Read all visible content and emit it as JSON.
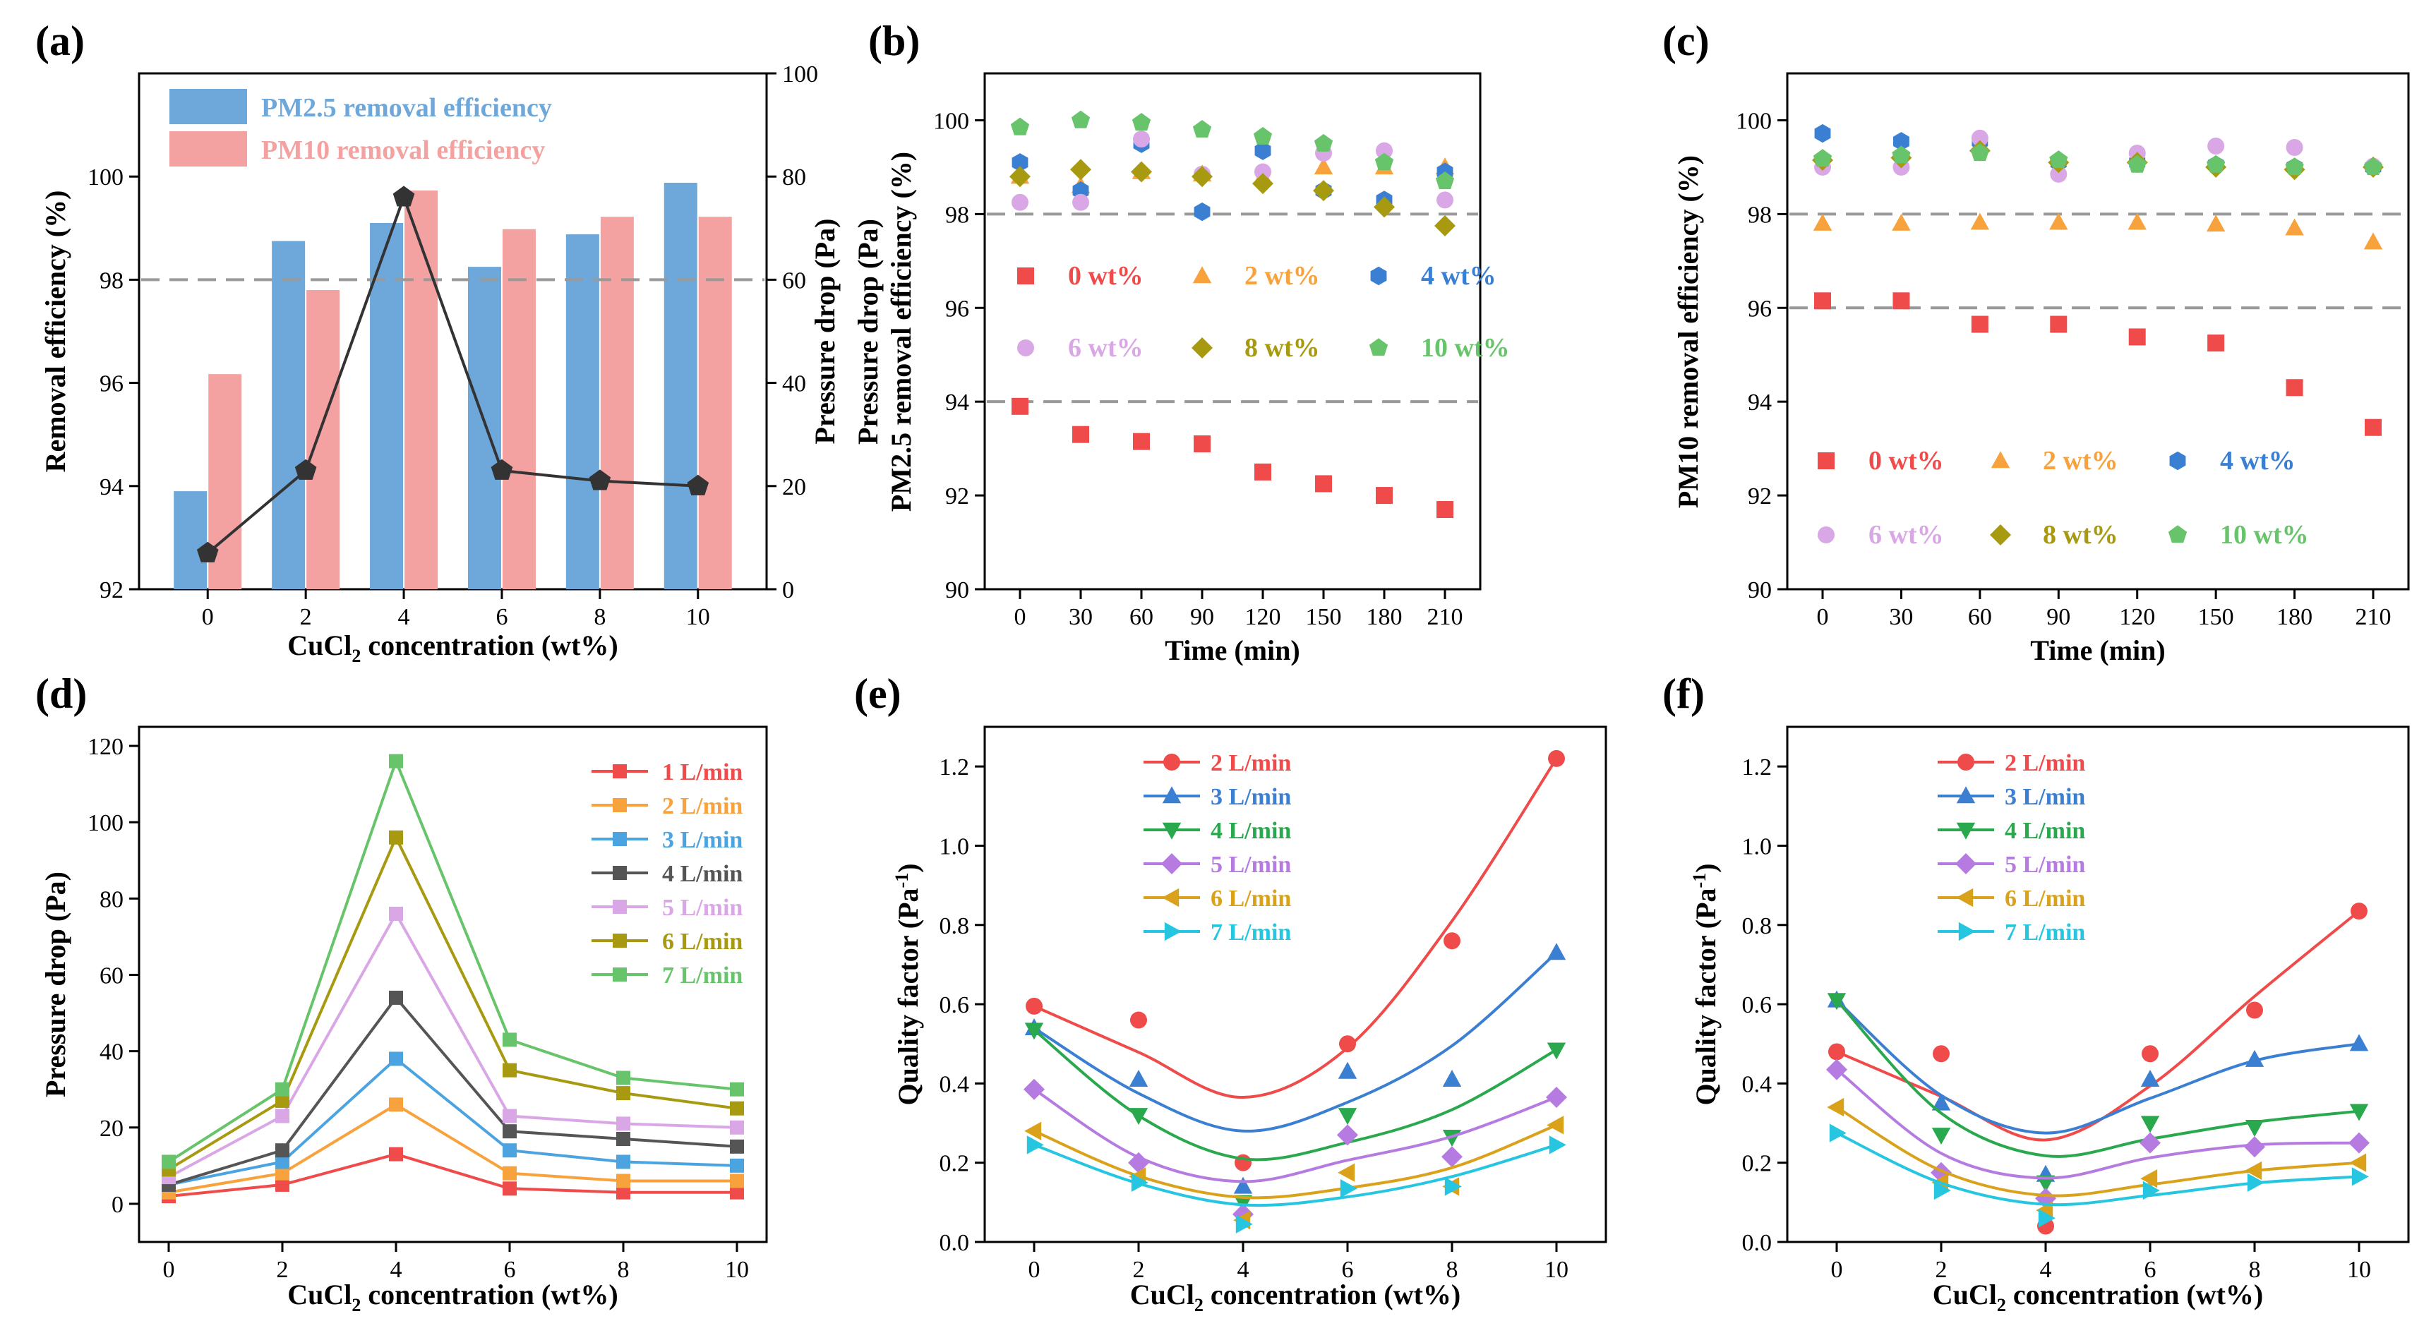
{
  "colors": {
    "red": "#ef4b4b",
    "orange": "#f7a23c",
    "blue": "#3b7fd2",
    "gray": "#555555",
    "pink": "#d9a7e6",
    "olive": "#a79a10",
    "green": "#68c46a",
    "teal": "#26c6e0",
    "darkgreen": "#2aa84e",
    "purple": "#b57be0",
    "gold": "#d9a21a",
    "bar_blue": "#6ea7da",
    "bar_pink": "#f4a1a1",
    "dash": "#999999"
  },
  "chart_data": [
    {
      "panel": "(a)",
      "type": "bar",
      "categories": [
        "0",
        "2",
        "4",
        "6",
        "8",
        "10"
      ],
      "series": [
        {
          "name": "PM2.5 removal efficiency",
          "values": [
            93.9,
            98.75,
            99.1,
            98.25,
            98.88,
            99.88
          ]
        },
        {
          "name": "PM10 removal efficiency",
          "values": [
            96.17,
            97.8,
            99.73,
            98.98,
            99.22,
            99.22
          ]
        }
      ],
      "line_series": {
        "name": "Pressure drop",
        "axis": "right",
        "values": [
          7,
          23,
          76,
          23,
          21,
          20
        ]
      },
      "xlabel": "CuCl2 concentration (wt%)",
      "xlabel_main": "CuCl",
      "xlabel_sub": "2",
      "xlabel_rest": " concentration (wt%)",
      "ylabel": "Removal efficiency (%)",
      "ylim": [
        92,
        102
      ],
      "yticks": [
        "92",
        "94",
        "96",
        "98",
        "100"
      ],
      "y2label": "Pressure drop (Pa)",
      "y2lim": [
        0,
        100
      ],
      "y2ticks": [
        "0",
        "20",
        "40",
        "60",
        "80",
        "100"
      ],
      "reference_line": 98
    },
    {
      "panel": "(b)",
      "type": "scatter",
      "x": [
        0,
        30,
        60,
        90,
        120,
        150,
        180,
        210
      ],
      "xticks": [
        "0",
        "30",
        "60",
        "90",
        "120",
        "150",
        "180",
        "210"
      ],
      "series": [
        {
          "name": "0 wt%",
          "values": [
            93.9,
            93.3,
            93.15,
            93.1,
            92.5,
            92.25,
            92.0,
            91.7
          ]
        },
        {
          "name": "2 wt%",
          "values": [
            98.8,
            98.6,
            98.9,
            98.85,
            98.8,
            99.0,
            99.0,
            99.0
          ]
        },
        {
          "name": "4 wt%",
          "values": [
            99.1,
            98.5,
            99.5,
            98.05,
            99.35,
            98.5,
            98.3,
            98.9
          ]
        },
        {
          "name": "6 wt%",
          "values": [
            98.25,
            98.25,
            99.6,
            98.85,
            98.9,
            99.3,
            99.35,
            98.3
          ]
        },
        {
          "name": "8 wt%",
          "values": [
            98.8,
            98.95,
            98.9,
            98.8,
            98.65,
            98.5,
            98.15,
            97.75
          ]
        },
        {
          "name": "10 wt%",
          "values": [
            99.85,
            100.0,
            99.95,
            99.8,
            99.65,
            99.5,
            99.1,
            98.7
          ]
        }
      ],
      "xlabel": "Time (min)",
      "ylabel_line1": "Pressure drop (Pa)",
      "ylabel_line2": "PM2.5 removal efficiency (%)",
      "ylim": [
        90,
        101
      ],
      "yticks": [
        "90",
        "92",
        "94",
        "96",
        "98",
        "100"
      ],
      "reference_lines": [
        98,
        94
      ]
    },
    {
      "panel": "(c)",
      "type": "scatter",
      "x": [
        0,
        30,
        60,
        90,
        120,
        150,
        180,
        210
      ],
      "xticks": [
        "0",
        "30",
        "60",
        "90",
        "120",
        "150",
        "180",
        "210"
      ],
      "series": [
        {
          "name": "0 wt%",
          "values": [
            96.15,
            96.15,
            95.65,
            95.65,
            95.38,
            95.25,
            94.3,
            93.45
          ]
        },
        {
          "name": "2 wt%",
          "values": [
            97.8,
            97.8,
            97.82,
            97.82,
            97.82,
            97.78,
            97.7,
            97.4
          ]
        },
        {
          "name": "4 wt%",
          "values": [
            99.72,
            99.55,
            99.55,
            99.1,
            99.1,
            99.05,
            99.0,
            99.0
          ]
        },
        {
          "name": "6 wt%",
          "values": [
            99.0,
            99.0,
            99.62,
            98.85,
            99.3,
            99.45,
            99.42,
            99.02
          ]
        },
        {
          "name": "8 wt%",
          "values": [
            99.15,
            99.2,
            99.35,
            99.1,
            99.1,
            99.0,
            98.95,
            99.0
          ]
        },
        {
          "name": "10 wt%",
          "values": [
            99.18,
            99.25,
            99.3,
            99.15,
            99.05,
            99.05,
            99.0,
            99.0
          ]
        }
      ],
      "xlabel": "Time (min)",
      "ylabel": "PM10 removal efficiency (%)",
      "ylim": [
        90,
        101
      ],
      "yticks": [
        "90",
        "92",
        "94",
        "96",
        "98",
        "100"
      ],
      "reference_lines": [
        98,
        96
      ]
    },
    {
      "panel": "(d)",
      "type": "line",
      "x": [
        0,
        2,
        4,
        6,
        8,
        10
      ],
      "xticks": [
        "0",
        "2",
        "4",
        "6",
        "8",
        "10"
      ],
      "series": [
        {
          "name": "1 L/min",
          "values": [
            2,
            5,
            13,
            4,
            3,
            3
          ]
        },
        {
          "name": "2 L/min",
          "values": [
            3,
            8,
            26,
            8,
            6,
            6
          ]
        },
        {
          "name": "3 L/min",
          "values": [
            5,
            11,
            38,
            14,
            11,
            10
          ]
        },
        {
          "name": "4 L/min",
          "values": [
            5,
            14,
            54,
            19,
            17,
            15
          ]
        },
        {
          "name": "5 L/min",
          "values": [
            7,
            23,
            76,
            23,
            21,
            20
          ]
        },
        {
          "name": "6 L/min",
          "values": [
            9,
            27,
            96,
            35,
            29,
            25
          ]
        },
        {
          "name": "7 L/min",
          "values": [
            11,
            30,
            116,
            43,
            33,
            30
          ]
        }
      ],
      "xlabel": "CuCl2 concentration (wt%)",
      "xlabel_main": "CuCl",
      "xlabel_sub": "2",
      "xlabel_rest": " concentration (wt%)",
      "ylabel": "Pressure drop (Pa)",
      "ylim": [
        -10,
        125
      ],
      "yticks": [
        "0",
        "20",
        "40",
        "60",
        "80",
        "100",
        "120"
      ]
    },
    {
      "panel": "(e)",
      "type": "scatter",
      "x": [
        0,
        2,
        4,
        6,
        8,
        10
      ],
      "xticks": [
        "0",
        "2",
        "4",
        "6",
        "8",
        "10"
      ],
      "series": [
        {
          "name": "2 L/min",
          "values": [
            0.595,
            0.56,
            0.2,
            0.5,
            0.76,
            1.22
          ]
        },
        {
          "name": "3 L/min",
          "values": [
            0.54,
            0.41,
            0.14,
            0.43,
            0.41,
            0.73
          ]
        },
        {
          "name": "4 L/min",
          "values": [
            0.535,
            0.32,
            0.1,
            0.32,
            0.265,
            0.485
          ]
        },
        {
          "name": "5 L/min",
          "values": [
            0.385,
            0.2,
            0.07,
            0.27,
            0.215,
            0.365
          ]
        },
        {
          "name": "6 L/min",
          "values": [
            0.28,
            0.165,
            0.055,
            0.175,
            0.14,
            0.295
          ]
        },
        {
          "name": "7 L/min",
          "values": [
            0.245,
            0.15,
            0.045,
            0.135,
            0.14,
            0.245
          ]
        }
      ],
      "fit_curves": true,
      "xlabel": "CuCl2 concentration (wt%)",
      "xlabel_main": "CuCl",
      "xlabel_sub": "2",
      "xlabel_rest": " concentration (wt%)",
      "ylabel": "Quality factor (Pa-1)",
      "ylabel_main": "Quality factor (Pa",
      "ylabel_sup": "-1",
      "ylabel_end": ")",
      "ylim": [
        0,
        1.3
      ],
      "yticks": [
        "0.0",
        "0.2",
        "0.4",
        "0.6",
        "0.8",
        "1.0",
        "1.2"
      ]
    },
    {
      "panel": "(f)",
      "type": "scatter",
      "x": [
        0,
        2,
        4,
        6,
        8,
        10
      ],
      "xticks": [
        "0",
        "2",
        "4",
        "6",
        "8",
        "10"
      ],
      "series": [
        {
          "name": "2 L/min",
          "values": [
            0.48,
            0.475,
            0.04,
            0.475,
            0.585,
            0.835
          ]
        },
        {
          "name": "3 L/min",
          "values": [
            0.61,
            0.35,
            0.17,
            0.41,
            0.46,
            0.5
          ]
        },
        {
          "name": "4 L/min",
          "values": [
            0.61,
            0.27,
            0.15,
            0.3,
            0.29,
            0.33
          ]
        },
        {
          "name": "5 L/min",
          "values": [
            0.435,
            0.175,
            0.11,
            0.25,
            0.24,
            0.25
          ]
        },
        {
          "name": "6 L/min",
          "values": [
            0.34,
            0.15,
            0.08,
            0.16,
            0.18,
            0.2
          ]
        },
        {
          "name": "7 L/min",
          "values": [
            0.275,
            0.13,
            0.06,
            0.13,
            0.15,
            0.165
          ]
        }
      ],
      "fit_curves": true,
      "xlabel": "CuCl2 concentration (wt%)",
      "xlabel_main": "CuCl",
      "xlabel_sub": "2",
      "xlabel_rest": " concentration (wt%)",
      "ylabel": "Quality factor (Pa-1)",
      "ylabel_main": "Quality factor (Pa",
      "ylabel_sup": "-1",
      "ylabel_end": ")",
      "ylim": [
        0,
        1.3
      ],
      "yticks": [
        "0.0",
        "0.2",
        "0.4",
        "0.6",
        "0.8",
        "1.0",
        "1.2"
      ]
    }
  ]
}
